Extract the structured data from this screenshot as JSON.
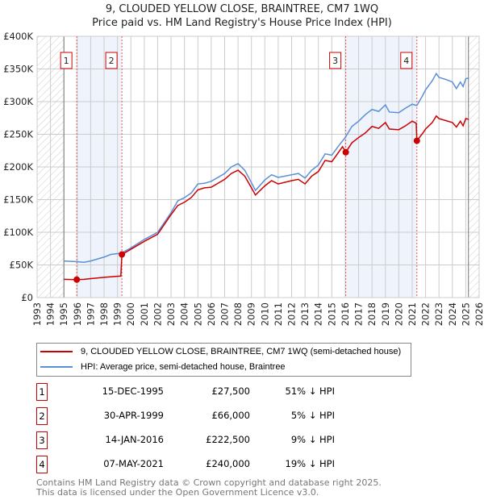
{
  "title": "9, CLOUDED YELLOW CLOSE, BRAINTREE, CM7 1WQ",
  "subtitle": "Price paid vs. HM Land Registry's House Price Index (HPI)",
  "chart_data": {
    "type": "line",
    "xlim": [
      1993,
      2026
    ],
    "ylim": [
      0,
      400000
    ],
    "x_ticks": [
      "1993",
      "1994",
      "1995",
      "1996",
      "1997",
      "1998",
      "1999",
      "2000",
      "2001",
      "2002",
      "2003",
      "2004",
      "2005",
      "2006",
      "2007",
      "2008",
      "2009",
      "2010",
      "2011",
      "2012",
      "2013",
      "2014",
      "2015",
      "2016",
      "2017",
      "2018",
      "2019",
      "2020",
      "2021",
      "2022",
      "2023",
      "2024",
      "2025",
      "2026"
    ],
    "y_ticks": [
      {
        "v": 0,
        "label": "£0"
      },
      {
        "v": 50000,
        "label": "£50K"
      },
      {
        "v": 100000,
        "label": "£100K"
      },
      {
        "v": 150000,
        "label": "£150K"
      },
      {
        "v": 200000,
        "label": "£200K"
      },
      {
        "v": 250000,
        "label": "£250K"
      },
      {
        "v": 300000,
        "label": "£300K"
      },
      {
        "v": 350000,
        "label": "£350K"
      },
      {
        "v": 400000,
        "label": "£400K"
      }
    ],
    "hatched_ranges": [
      [
        1993,
        1995
      ],
      [
        2025.2,
        2026
      ]
    ],
    "shaded_ranges": [
      [
        1995.96,
        1999.33
      ],
      [
        2016.04,
        2021.35
      ]
    ],
    "series": [
      {
        "name": "9, CLOUDED YELLOW CLOSE, BRAINTREE, CM7 1WQ (semi-detached house)",
        "color": "#cc0000",
        "points": [
          [
            1995,
            28
          ],
          [
            1995.96,
            27.5
          ],
          [
            1996.5,
            28
          ],
          [
            1997,
            29
          ],
          [
            1998,
            31
          ],
          [
            1999.25,
            33
          ],
          [
            1999.33,
            66
          ],
          [
            2000,
            74
          ],
          [
            2001,
            86
          ],
          [
            2002,
            97
          ],
          [
            2003,
            127
          ],
          [
            2003.5,
            141
          ],
          [
            2004,
            146
          ],
          [
            2004.5,
            153
          ],
          [
            2005,
            165
          ],
          [
            2005.5,
            168
          ],
          [
            2006,
            169
          ],
          [
            2007,
            181
          ],
          [
            2007.5,
            190
          ],
          [
            2008,
            195
          ],
          [
            2008.5,
            186
          ],
          [
            2009,
            168
          ],
          [
            2009.3,
            157
          ],
          [
            2010,
            171
          ],
          [
            2010.5,
            179
          ],
          [
            2011,
            174
          ],
          [
            2012,
            179
          ],
          [
            2012.5,
            181
          ],
          [
            2013,
            174
          ],
          [
            2013.5,
            186
          ],
          [
            2014,
            193
          ],
          [
            2014.5,
            210
          ],
          [
            2015,
            208
          ],
          [
            2015.8,
            231
          ],
          [
            2016.04,
            222.5
          ],
          [
            2016.5,
            237
          ],
          [
            2017,
            245
          ],
          [
            2017.5,
            252
          ],
          [
            2018,
            262
          ],
          [
            2018.5,
            259
          ],
          [
            2019,
            268
          ],
          [
            2019.3,
            258
          ],
          [
            2020,
            257
          ],
          [
            2020.5,
            263
          ],
          [
            2021,
            270
          ],
          [
            2021.3,
            267
          ],
          [
            2021.35,
            240
          ],
          [
            2021.8,
            252
          ],
          [
            2022,
            258
          ],
          [
            2022.5,
            268
          ],
          [
            2022.8,
            278
          ],
          [
            2023,
            274
          ],
          [
            2023.5,
            271
          ],
          [
            2024,
            268
          ],
          [
            2024.3,
            261
          ],
          [
            2024.6,
            270
          ],
          [
            2024.8,
            263
          ],
          [
            2025,
            274
          ],
          [
            2025.2,
            273
          ]
        ]
      },
      {
        "name": "HPI: Average price, semi-detached house, Braintree",
        "color": "#5b8fd6",
        "points": [
          [
            1995,
            56
          ],
          [
            1996,
            55
          ],
          [
            1996.5,
            54
          ],
          [
            1997,
            56
          ],
          [
            1998,
            62
          ],
          [
            1998.5,
            66
          ],
          [
            1999.3,
            68
          ],
          [
            2000,
            76
          ],
          [
            2001,
            89
          ],
          [
            2002,
            100
          ],
          [
            2003,
            130
          ],
          [
            2003.5,
            148
          ],
          [
            2004,
            153
          ],
          [
            2004.5,
            160
          ],
          [
            2005,
            174
          ],
          [
            2005.5,
            175
          ],
          [
            2006,
            178
          ],
          [
            2007,
            190
          ],
          [
            2007.5,
            200
          ],
          [
            2008,
            205
          ],
          [
            2008.5,
            195
          ],
          [
            2009,
            176
          ],
          [
            2009.3,
            164
          ],
          [
            2010,
            180
          ],
          [
            2010.5,
            188
          ],
          [
            2011,
            184
          ],
          [
            2012,
            188
          ],
          [
            2012.5,
            190
          ],
          [
            2013,
            183
          ],
          [
            2013.5,
            195
          ],
          [
            2014,
            203
          ],
          [
            2014.5,
            220
          ],
          [
            2015,
            218
          ],
          [
            2015.5,
            232
          ],
          [
            2016,
            245
          ],
          [
            2016.5,
            262
          ],
          [
            2017,
            270
          ],
          [
            2017.5,
            280
          ],
          [
            2018,
            288
          ],
          [
            2018.5,
            285
          ],
          [
            2019,
            295
          ],
          [
            2019.3,
            284
          ],
          [
            2020,
            283
          ],
          [
            2020.5,
            290
          ],
          [
            2021,
            296
          ],
          [
            2021.35,
            294
          ],
          [
            2021.8,
            310
          ],
          [
            2022,
            318
          ],
          [
            2022.5,
            332
          ],
          [
            2022.8,
            343
          ],
          [
            2023,
            337
          ],
          [
            2023.5,
            334
          ],
          [
            2024,
            330
          ],
          [
            2024.3,
            320
          ],
          [
            2024.6,
            330
          ],
          [
            2024.8,
            323
          ],
          [
            2025,
            335
          ],
          [
            2025.2,
            336
          ]
        ]
      }
    ],
    "sales": [
      {
        "n": "1",
        "x": 1995.96,
        "y": 27500
      },
      {
        "n": "2",
        "x": 1999.33,
        "y": 66000
      },
      {
        "n": "3",
        "x": 2016.04,
        "y": 222500
      },
      {
        "n": "4",
        "x": 2021.35,
        "y": 240000
      }
    ]
  },
  "legend": {
    "red": "9, CLOUDED YELLOW CLOSE, BRAINTREE, CM7 1WQ (semi-detached house)",
    "blue": "HPI: Average price, semi-detached house, Braintree"
  },
  "transactions": [
    {
      "n": "1",
      "date": "15-DEC-1995",
      "price": "£27,500",
      "hpi": "51% ↓ HPI"
    },
    {
      "n": "2",
      "date": "30-APR-1999",
      "price": "£66,000",
      "hpi": "5% ↓ HPI"
    },
    {
      "n": "3",
      "date": "14-JAN-2016",
      "price": "£222,500",
      "hpi": "9% ↓ HPI"
    },
    {
      "n": "4",
      "date": "07-MAY-2021",
      "price": "£240,000",
      "hpi": "19% ↓ HPI"
    }
  ],
  "footer": {
    "line1": "Contains HM Land Registry data © Crown copyright and database right 2025.",
    "line2": "This data is licensed under the Open Government Licence v3.0."
  }
}
